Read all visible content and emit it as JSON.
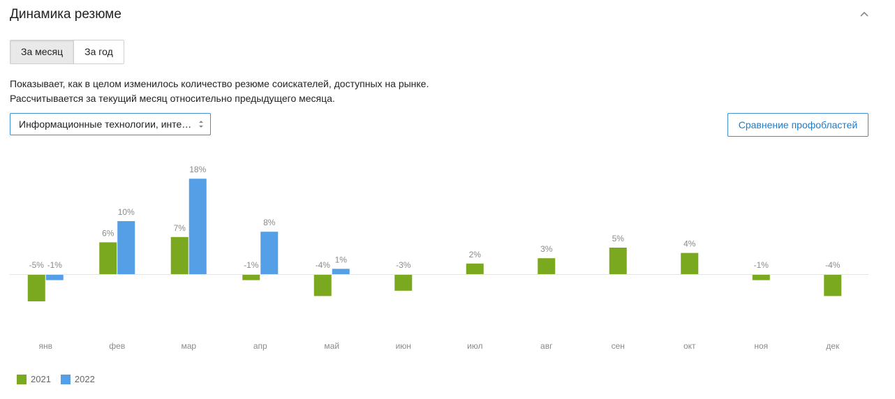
{
  "header": {
    "title": "Динамика резюме",
    "collapse_icon": "chevron-up-icon"
  },
  "tabs": [
    {
      "label": "За месяц",
      "active": true
    },
    {
      "label": "За год",
      "active": false
    }
  ],
  "description": {
    "line1": "Показывает, как в целом изменилось количество резюме соискателей, доступных на рынке.",
    "line2": "Рассчитывается за текущий месяц относительно предыдущего месяца."
  },
  "filter": {
    "selected": "Информационные технологии, инте…"
  },
  "compare_button": {
    "label": "Сравнение профобластей"
  },
  "colors": {
    "accent": "#1a7ccc",
    "series_2021": "#7aa81f",
    "series_2022": "#559fe6"
  },
  "chart_data": {
    "type": "bar",
    "categories": [
      "янв",
      "фев",
      "мар",
      "апр",
      "май",
      "июн",
      "июл",
      "авг",
      "сен",
      "окт",
      "ноя",
      "дек"
    ],
    "series": [
      {
        "name": "2021",
        "values": [
          -5,
          6,
          7,
          -1,
          -4,
          -3,
          2,
          3,
          5,
          4,
          -1,
          -4
        ]
      },
      {
        "name": "2022",
        "values": [
          -1,
          10,
          18,
          8,
          1,
          null,
          null,
          null,
          null,
          null,
          null,
          null
        ]
      }
    ],
    "unit": "%",
    "ylim": [
      -9,
      21
    ],
    "grid": false,
    "legend_position": "bottom-left"
  }
}
